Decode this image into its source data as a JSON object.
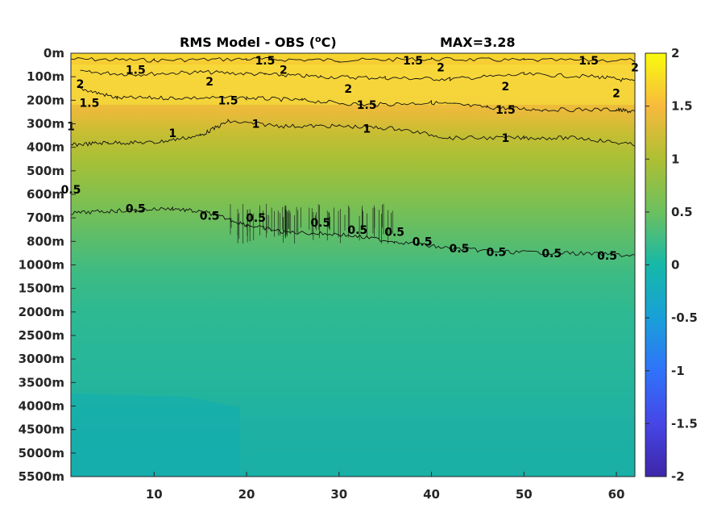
{
  "chart_data": {
    "type": "heatmap",
    "title": "RMS Model - OBS (",
    "title_super": "o",
    "title_tail": "C)",
    "max_label": "MAX=3.28",
    "xlabel": "",
    "ylabel": "",
    "x_ticks": [
      10,
      20,
      30,
      40,
      50,
      60
    ],
    "xlim": [
      1,
      62
    ],
    "depth_levels": [
      "0m",
      "100m",
      "200m",
      "300m",
      "400m",
      "500m",
      "600m",
      "700m",
      "800m",
      "1000m",
      "1500m",
      "2000m",
      "2500m",
      "3000m",
      "3500m",
      "4000m",
      "4500m",
      "5000m",
      "5500m"
    ],
    "colorbar": {
      "ticks": [
        "2",
        "1.5",
        "1",
        "0.5",
        "0",
        "-0.5",
        "-1",
        "-1.5",
        "-2"
      ],
      "range": [
        -2,
        2
      ]
    },
    "contour_levels": [
      0.5,
      1,
      1.5,
      2
    ],
    "contour_labels": [
      {
        "text": "1.5",
        "x": 8,
        "depth": 0.7
      },
      {
        "text": "1.5",
        "x": 22,
        "depth": 0.3
      },
      {
        "text": "1.5",
        "x": 38,
        "depth": 0.3
      },
      {
        "text": "1.5",
        "x": 57,
        "depth": 0.3
      },
      {
        "text": "2",
        "x": 2,
        "depth": 1.3
      },
      {
        "text": "2",
        "x": 16,
        "depth": 1.2
      },
      {
        "text": "2",
        "x": 24,
        "depth": 0.7
      },
      {
        "text": "2",
        "x": 31,
        "depth": 1.5
      },
      {
        "text": "2",
        "x": 41,
        "depth": 0.6
      },
      {
        "text": "2",
        "x": 48,
        "depth": 1.4
      },
      {
        "text": "2",
        "x": 60,
        "depth": 1.7
      },
      {
        "text": "2",
        "x": 62,
        "depth": 0.6
      },
      {
        "text": "1.5",
        "x": 3,
        "depth": 2.1
      },
      {
        "text": "1.5",
        "x": 18,
        "depth": 2.0
      },
      {
        "text": "1.5",
        "x": 33,
        "depth": 2.2
      },
      {
        "text": "1.5",
        "x": 48,
        "depth": 2.4
      },
      {
        "text": "1",
        "x": 1,
        "depth": 3.1
      },
      {
        "text": "1",
        "x": 12,
        "depth": 3.4
      },
      {
        "text": "1",
        "x": 21,
        "depth": 3.0
      },
      {
        "text": "1",
        "x": 33,
        "depth": 3.2
      },
      {
        "text": "1",
        "x": 48,
        "depth": 3.6
      },
      {
        "text": "0.5",
        "x": 1,
        "depth": 5.8
      },
      {
        "text": "0.5",
        "x": 8,
        "depth": 6.6
      },
      {
        "text": "0.5",
        "x": 16,
        "depth": 6.9
      },
      {
        "text": "0.5",
        "x": 21,
        "depth": 7.0
      },
      {
        "text": "0.5",
        "x": 28,
        "depth": 7.2
      },
      {
        "text": "0.5",
        "x": 32,
        "depth": 7.5
      },
      {
        "text": "0.5",
        "x": 36,
        "depth": 7.6
      },
      {
        "text": "0.5",
        "x": 39,
        "depth": 8.0
      },
      {
        "text": "0.5",
        "x": 43,
        "depth": 8.3
      },
      {
        "text": "0.5",
        "x": 47,
        "depth": 8.45
      },
      {
        "text": "0.5",
        "x": 53,
        "depth": 8.5
      },
      {
        "text": "0.5",
        "x": 59,
        "depth": 8.6
      }
    ],
    "contour_lines": {
      "c2_top": [
        [
          1,
          0.25
        ],
        [
          10,
          0.3
        ],
        [
          20,
          0.25
        ],
        [
          30,
          0.3
        ],
        [
          40,
          0.25
        ],
        [
          50,
          0.3
        ],
        [
          62,
          0.3
        ]
      ],
      "c2_mid": [
        [
          2,
          0.8
        ],
        [
          8,
          0.9
        ],
        [
          15,
          0.8
        ],
        [
          22,
          0.9
        ],
        [
          28,
          1.0
        ],
        [
          35,
          1.05
        ],
        [
          42,
          1.1
        ],
        [
          50,
          0.9
        ],
        [
          58,
          1.0
        ],
        [
          62,
          1.2
        ]
      ],
      "c15": [
        [
          2,
          1.5
        ],
        [
          6,
          1.9
        ],
        [
          12,
          1.9
        ],
        [
          20,
          1.9
        ],
        [
          26,
          2.0
        ],
        [
          33,
          2.2
        ],
        [
          40,
          2.1
        ],
        [
          46,
          2.3
        ],
        [
          52,
          2.4
        ],
        [
          60,
          2.4
        ],
        [
          62,
          2.5
        ]
      ],
      "c1": [
        [
          1,
          3.9
        ],
        [
          5,
          3.8
        ],
        [
          10,
          3.8
        ],
        [
          15,
          3.5
        ],
        [
          18,
          2.9
        ],
        [
          24,
          3.1
        ],
        [
          30,
          3.1
        ],
        [
          36,
          3.2
        ],
        [
          42,
          3.6
        ],
        [
          50,
          3.6
        ],
        [
          56,
          3.6
        ],
        [
          62,
          3.9
        ]
      ],
      "c05": [
        [
          1,
          6.8
        ],
        [
          6,
          6.7
        ],
        [
          12,
          6.6
        ],
        [
          16,
          6.8
        ],
        [
          20,
          7.3
        ],
        [
          24,
          7.6
        ],
        [
          30,
          7.7
        ],
        [
          36,
          8.0
        ],
        [
          42,
          8.3
        ],
        [
          48,
          8.45
        ],
        [
          55,
          8.5
        ],
        [
          62,
          8.6
        ]
      ]
    }
  }
}
